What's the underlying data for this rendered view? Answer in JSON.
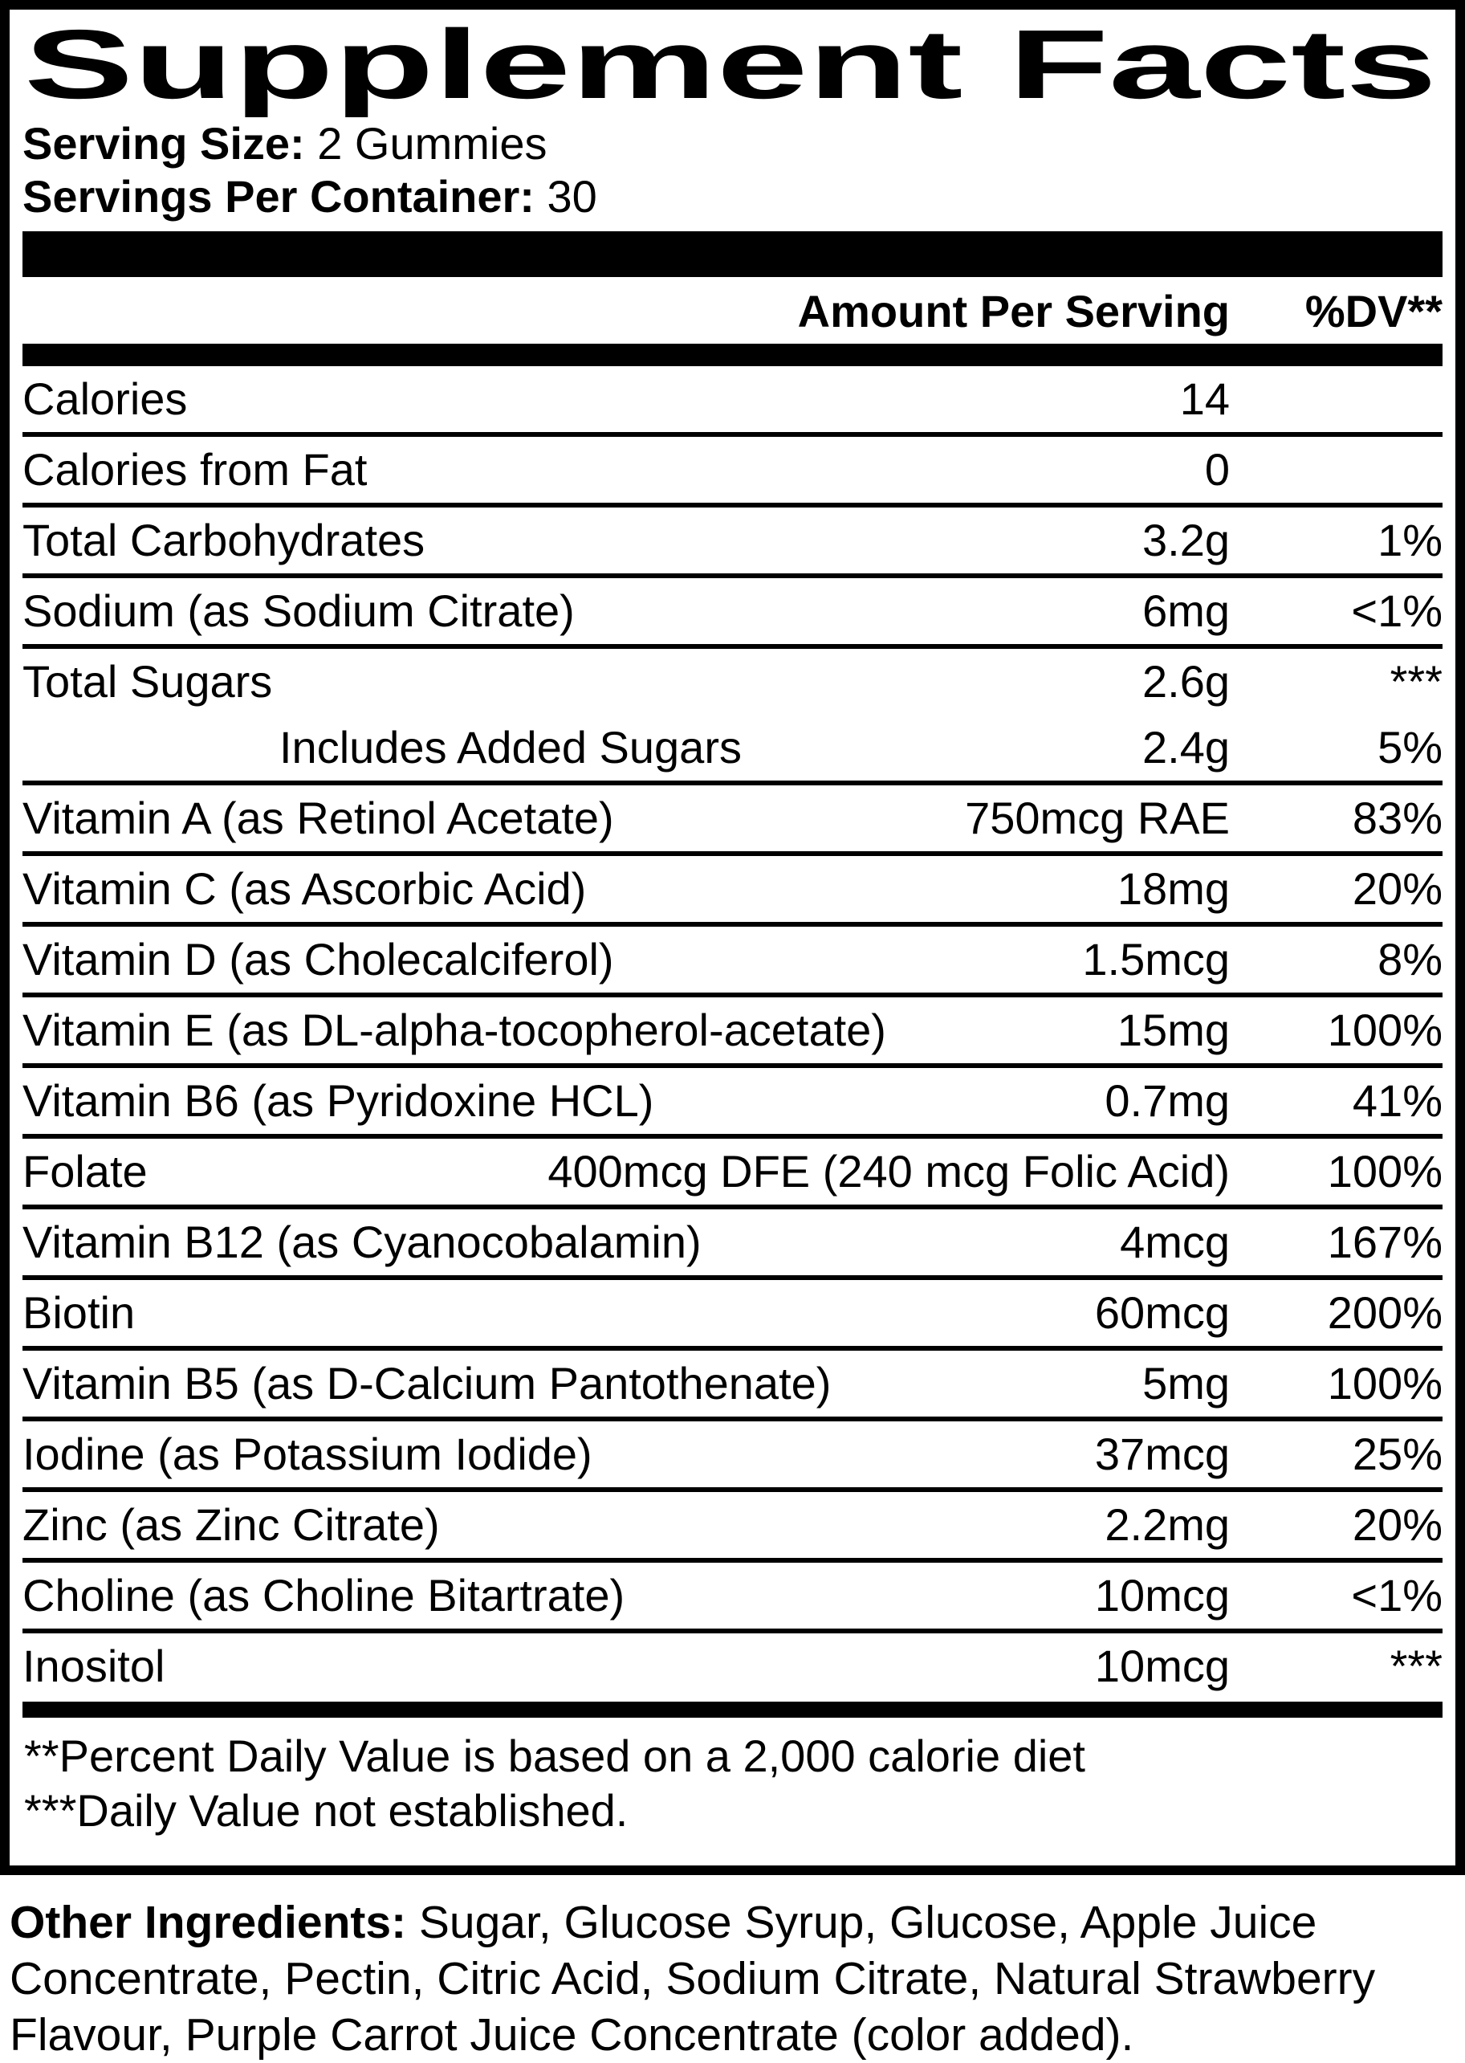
{
  "label": {
    "title": "Supplement Facts",
    "serving_size_label": "Serving Size:",
    "serving_size_value": " 2 Gummies",
    "servings_per_container_label": "Servings Per Container:",
    "servings_per_container_value": " 30",
    "colors": {
      "ink": "#000000",
      "paper": "#ffffff"
    }
  },
  "table": {
    "amount_header": "Amount Per Serving",
    "dv_header": "%DV**",
    "rows": [
      {
        "label": "Calories",
        "amount": "14",
        "dv": ""
      },
      {
        "label": "Calories from Fat",
        "amount": "0",
        "dv": ""
      },
      {
        "label": "Total Carbohydrates",
        "amount": "3.2g",
        "dv": "1%"
      },
      {
        "label": "Sodium (as Sodium Citrate)",
        "amount": "6mg",
        "dv": "<1%"
      },
      {
        "label": "Total Sugars",
        "amount": "2.6g",
        "dv": "***"
      },
      {
        "label": "Includes Added Sugars",
        "amount": "2.4g",
        "dv": "5%"
      },
      {
        "label": "Vitamin A (as Retinol Acetate)",
        "amount": "750mcg RAE",
        "dv": "83%"
      },
      {
        "label": "Vitamin C (as Ascorbic Acid)",
        "amount": "18mg",
        "dv": "20%"
      },
      {
        "label": "Vitamin D (as Cholecalciferol)",
        "amount": "1.5mcg",
        "dv": "8%"
      },
      {
        "label": "Vitamin E (as DL-alpha-tocopherol-acetate)",
        "amount": "15mg",
        "dv": "100%"
      },
      {
        "label": "Vitamin B6 (as Pyridoxine HCL)",
        "amount": "0.7mg",
        "dv": "41%"
      },
      {
        "label": "Folate",
        "amount": "400mcg DFE (240 mcg Folic Acid)",
        "dv": "100%"
      },
      {
        "label": "Vitamin B12 (as Cyanocobalamin)",
        "amount": "4mcg",
        "dv": "167%"
      },
      {
        "label": "Biotin",
        "amount": "60mcg",
        "dv": "200%"
      },
      {
        "label": "Vitamin B5 (as D-Calcium Pantothenate)",
        "amount": "5mg",
        "dv": "100%"
      },
      {
        "label": "Iodine (as Potassium Iodide)",
        "amount": "37mcg",
        "dv": "25%"
      },
      {
        "label": "Zinc (as Zinc Citrate)",
        "amount": "2.2mg",
        "dv": "20%"
      },
      {
        "label": "Choline (as Choline Bitartrate)",
        "amount": "10mcg",
        "dv": "<1%"
      },
      {
        "label": "Inositol",
        "amount": "10mcg",
        "dv": "***"
      }
    ]
  },
  "footnotes": {
    "line1": "**Percent Daily Value is based on a 2,000 calorie diet",
    "line2": "***Daily Value not established."
  },
  "other_ingredients": {
    "label": "Other Ingredients:",
    "text": " Sugar, Glucose Syrup, Glucose, Apple Juice Concentrate, Pectin, Citric Acid, Sodium Citrate, Natural Strawberry Flavour, Purple Carrot Juice Concentrate (color added)."
  }
}
